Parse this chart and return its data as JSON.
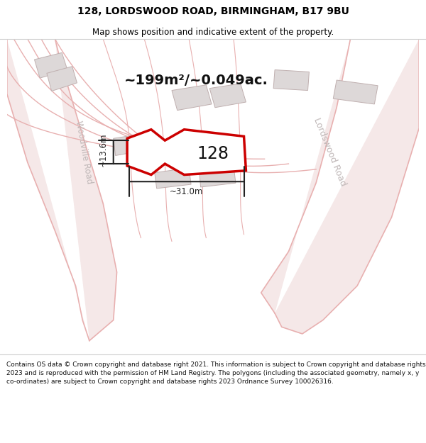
{
  "title": "128, LORDSWOOD ROAD, BIRMINGHAM, B17 9BU",
  "subtitle": "Map shows position and indicative extent of the property.",
  "footer": "Contains OS data © Crown copyright and database right 2021. This information is subject to Crown copyright and database rights 2023 and is reproduced with the permission of HM Land Registry. The polygons (including the associated geometry, namely x, y co-ordinates) are subject to Crown copyright and database rights 2023 Ordnance Survey 100026316.",
  "area_label": "~199m²/~0.049ac.",
  "number_label": "128",
  "dim_h": "~31.0m",
  "dim_v": "~13.6m",
  "map_bg": "#f7f4f4",
  "road_fill": "#f5e8e8",
  "road_line": "#e8b0b0",
  "bldg_fill": "#ddd8d8",
  "bldg_edge": "#c0b0b0",
  "prop_edge": "#cc0000",
  "prop_fill": "#ffffff",
  "dim_color": "#222222",
  "label_gray": "#c0b8b8",
  "title_size": 10,
  "subtitle_size": 8.5,
  "footer_size": 6.5
}
